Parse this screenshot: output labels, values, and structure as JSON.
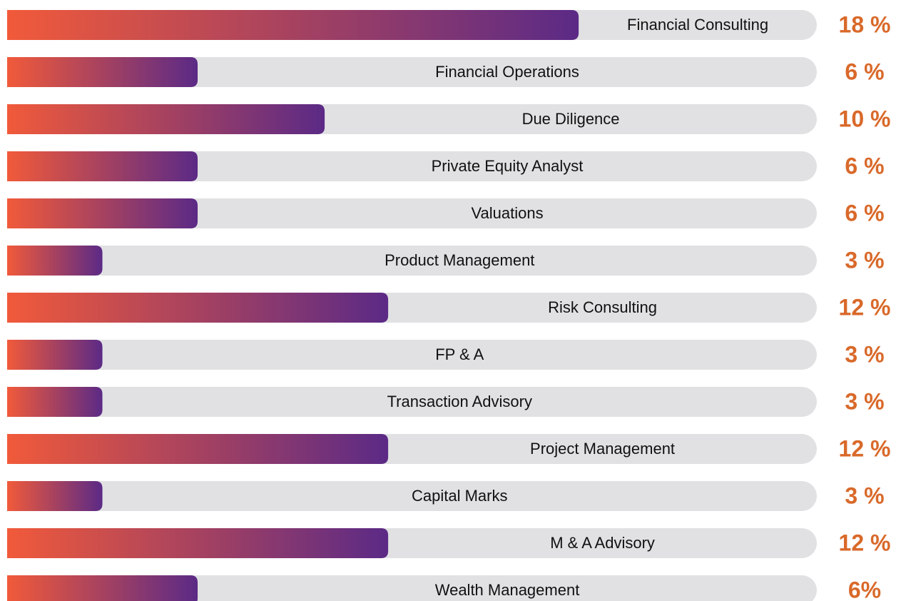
{
  "chart_data": {
    "type": "bar",
    "orientation": "horizontal",
    "categories": [
      "Financial Consulting",
      "Financial Operations",
      "Due Diligence",
      "Private Equity Analyst",
      "Valuations",
      "Product Management",
      "Risk Consulting",
      "FP & A",
      "Transaction Advisory",
      "Project Management",
      "Capital Marks",
      "M & A  Advisory",
      "Wealth Management"
    ],
    "values": [
      18,
      6,
      10,
      6,
      6,
      3,
      12,
      3,
      3,
      12,
      3,
      12,
      6
    ],
    "value_labels": [
      "18 %",
      "6 %",
      "10 %",
      "6 %",
      "6 %",
      "3 %",
      "12 %",
      "3 %",
      "3 %",
      "12 %",
      "3 %",
      "12 %",
      "6%"
    ],
    "xlim": [
      0,
      25.5
    ],
    "gradient": [
      "#f15a3a",
      "#5b2a86"
    ],
    "track_color": "#e1e1e3",
    "label_color": "#d9692a"
  }
}
